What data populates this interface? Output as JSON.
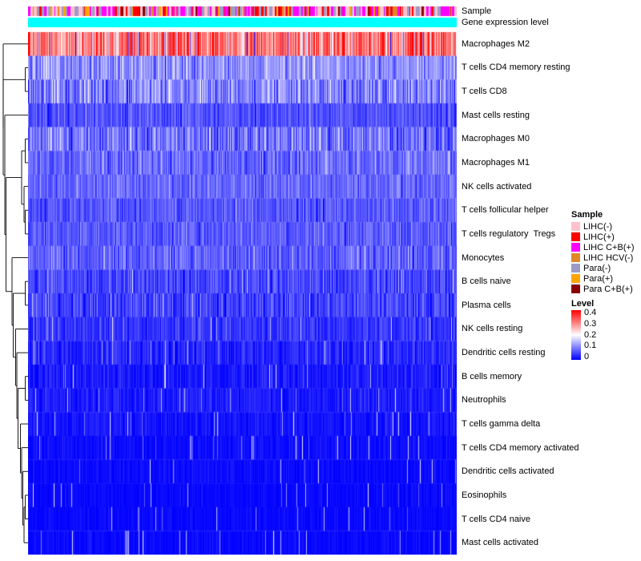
{
  "annotations": {
    "sample_label": "Sample",
    "expression_label": "Gene expression level"
  },
  "chart_data": {
    "type": "heatmap",
    "title": "",
    "xlabel": "",
    "ylabel": "",
    "n_rows": 22,
    "n_columns_estimate": 430,
    "value_range": [
      0,
      0.4
    ],
    "colormap": {
      "low": "#0000FF",
      "mid": "#FFFFFF",
      "high": "#FF0000",
      "midpoint": 0.2
    },
    "grid": false,
    "legend_position": "right",
    "rows": [
      {
        "name": "Macrophages M2",
        "mean": 0.31,
        "sd": 0.06
      },
      {
        "name": "T cells CD4 memory resting",
        "mean": 0.115,
        "sd": 0.035
      },
      {
        "name": "T cells CD8",
        "mean": 0.1,
        "sd": 0.045
      },
      {
        "name": "Mast cells resting",
        "mean": 0.065,
        "sd": 0.025
      },
      {
        "name": "Macrophages M0",
        "mean": 0.09,
        "sd": 0.04
      },
      {
        "name": "Macrophages M1",
        "mean": 0.085,
        "sd": 0.03
      },
      {
        "name": "NK cells activated",
        "mean": 0.08,
        "sd": 0.025
      },
      {
        "name": "T cells follicular helper",
        "mean": 0.07,
        "sd": 0.025
      },
      {
        "name": "T cells regulatory  Tregs",
        "mean": 0.07,
        "sd": 0.025
      },
      {
        "name": "Monocytes",
        "mean": 0.075,
        "sd": 0.03
      },
      {
        "name": "B cells naive",
        "mean": 0.05,
        "sd": 0.025
      },
      {
        "name": "Plasma cells",
        "mean": 0.05,
        "sd": 0.03
      },
      {
        "name": "NK cells resting",
        "mean": 0.04,
        "sd": 0.02
      },
      {
        "name": "Dendritic cells resting",
        "mean": 0.03,
        "sd": 0.02
      },
      {
        "name": "B cells memory",
        "mean": 0.02,
        "sd": 0.015
      },
      {
        "name": "Neutrophils",
        "mean": 0.02,
        "sd": 0.015
      },
      {
        "name": "T cells gamma delta",
        "mean": 0.015,
        "sd": 0.012
      },
      {
        "name": "T cells CD4 memory activated",
        "mean": 0.01,
        "sd": 0.01
      },
      {
        "name": "Dendritic cells activated",
        "mean": 0.008,
        "sd": 0.008
      },
      {
        "name": "Eosinophils",
        "mean": 0.006,
        "sd": 0.007
      },
      {
        "name": "T cells CD4 naive",
        "mean": 0.006,
        "sd": 0.007
      },
      {
        "name": "Mast cells activated",
        "mean": 0.006,
        "sd": 0.008
      }
    ],
    "column_annotations": [
      {
        "name": "Sample",
        "type": "categorical",
        "categories": [
          {
            "label": "LIHC(-)",
            "color": "#FFC1CC",
            "weight": 0.2
          },
          {
            "label": "LIHC(+)",
            "color": "#FF0000",
            "weight": 0.17
          },
          {
            "label": "LIHC C+B(+)",
            "color": "#FF00FF",
            "weight": 0.27
          },
          {
            "label": "LIHC HCV(-)",
            "color": "#E18727",
            "weight": 0.04
          },
          {
            "label": "Para(-)",
            "color": "#9E9AC8",
            "weight": 0.2
          },
          {
            "label": "Para(+)",
            "color": "#FFA500",
            "weight": 0.07
          },
          {
            "label": "Para C+B(+)",
            "color": "#8B0000",
            "weight": 0.05
          }
        ]
      },
      {
        "name": "Gene expression level",
        "type": "uniform",
        "color": "#00FFFF"
      }
    ],
    "legend": {
      "sample": {
        "title": "Sample",
        "items": [
          {
            "label": "LIHC(-)",
            "color": "#FFC1CC"
          },
          {
            "label": "LIHC(+)",
            "color": "#FF0000"
          },
          {
            "label": "LIHC C+B(+)",
            "color": "#FF00FF"
          },
          {
            "label": "LIHC HCV(-)",
            "color": "#E18727"
          },
          {
            "label": "Para(-)",
            "color": "#9E9AC8"
          },
          {
            "label": "Para(+)",
            "color": "#FFA500"
          },
          {
            "label": "Para C+B(+)",
            "color": "#8B0000"
          }
        ]
      },
      "level": {
        "title": "Level",
        "ticks": [
          "0.4",
          "0.3",
          "0.2",
          "0.1",
          "0"
        ],
        "top_color": "#FF0000",
        "mid_color": "#FFFFFF",
        "bottom_color": "#0000FF"
      }
    }
  }
}
